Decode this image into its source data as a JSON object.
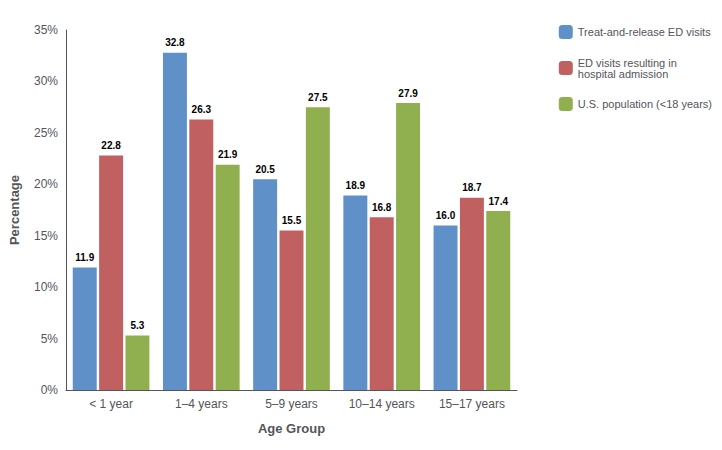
{
  "chart_data": {
    "type": "bar",
    "categories": [
      "< 1 year",
      "1–4 years",
      "5–9 years",
      "10–14 years",
      "15–17 years"
    ],
    "series": [
      {
        "name": "Treat-and-release ED visits",
        "color": "#6090C8",
        "values": [
          11.9,
          32.8,
          20.5,
          18.9,
          16.0
        ],
        "value_labels": [
          "11.9",
          "32.8",
          "20.5",
          "18.9",
          "16.0"
        ]
      },
      {
        "name": "ED visits resulting in\nhospital admission",
        "color": "#C06060",
        "values": [
          22.8,
          26.3,
          15.5,
          16.8,
          18.7
        ]
      },
      {
        "name": "U.S. population (<18 years)",
        "color": "#90B050",
        "values": [
          5.3,
          21.9,
          27.5,
          27.9,
          17.4
        ]
      }
    ],
    "xlabel": "Age Group",
    "ylabel": "Percentage",
    "ylim": [
      0,
      35
    ],
    "yticks": [
      {
        "value": 0,
        "label": "0%"
      },
      {
        "value": 5,
        "label": "5%"
      },
      {
        "value": 10,
        "label": "10%"
      },
      {
        "value": 15,
        "label": "15%"
      },
      {
        "value": 20,
        "label": "20%"
      },
      {
        "value": 25,
        "label": "25%"
      },
      {
        "value": 30,
        "label": "30%"
      },
      {
        "value": 35,
        "label": "35%"
      }
    ],
    "grid": false,
    "legend": "right",
    "data_labels": true
  }
}
